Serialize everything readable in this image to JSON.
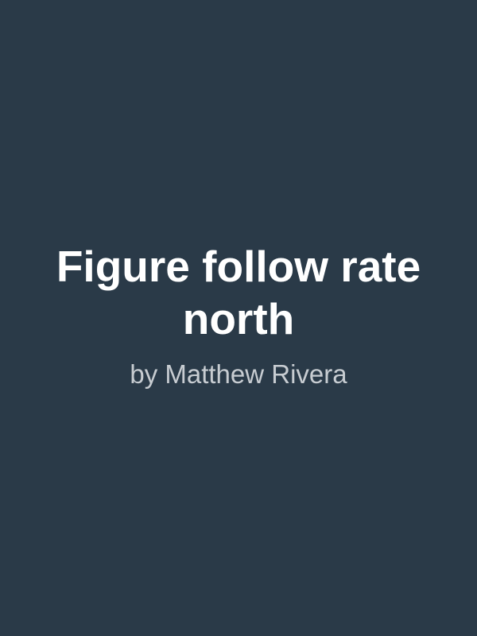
{
  "cover": {
    "title": "Figure follow rate north",
    "author_line": "by Matthew Rivera"
  },
  "colors": {
    "background": "#2a3a48",
    "title": "#ffffff",
    "author": "#c7ccd1"
  }
}
